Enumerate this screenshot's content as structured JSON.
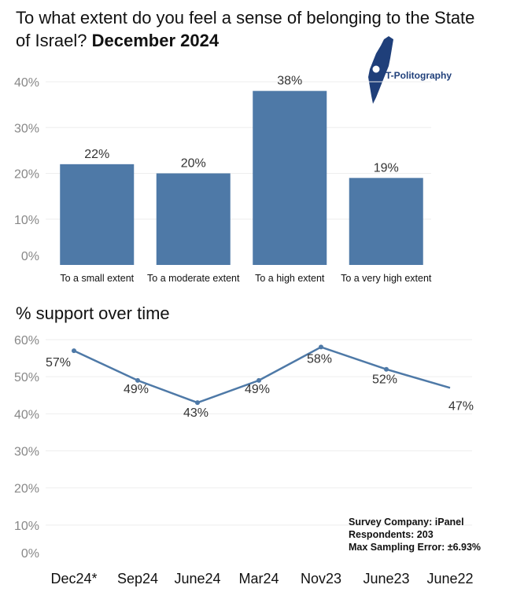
{
  "title": {
    "main": "To what extent do you feel a sense of belonging to the State of Israel?",
    "date": "December 2024"
  },
  "logo": {
    "text": "T-Politography"
  },
  "subtitle": "% support over time",
  "survey": {
    "company": "Survey Company: iPanel",
    "respondents": "Respondents: 203",
    "error": "Max Sampling Error: ±6.93%"
  },
  "colors": {
    "bar": "#4e79a7",
    "line": "#4e79a7",
    "grid": "#eeeeee",
    "tick": "#888888"
  },
  "chart_data": [
    {
      "type": "bar",
      "categories": [
        "To a small extent",
        "To a moderate extent",
        "To a high extent",
        "To a very high extent"
      ],
      "values": [
        22,
        20,
        38,
        19
      ],
      "value_labels": [
        "22%",
        "20%",
        "38%",
        "19%"
      ],
      "yticks": [
        "0%",
        "10%",
        "20%",
        "30%",
        "40%"
      ],
      "ylim": [
        0,
        40
      ],
      "grid": true
    },
    {
      "type": "line",
      "categories": [
        "Dec24*",
        "Sep24",
        "June24",
        "Mar24",
        "Nov23",
        "June23",
        "June22"
      ],
      "values": [
        57,
        49,
        43,
        49,
        58,
        52,
        47
      ],
      "value_labels": [
        "57%",
        "49%",
        "43%",
        "49%",
        "58%",
        "52%",
        "47%"
      ],
      "yticks": [
        "0%",
        "10%",
        "20%",
        "30%",
        "40%",
        "50%",
        "60%"
      ],
      "ylim": [
        0,
        60
      ],
      "grid": true
    }
  ]
}
